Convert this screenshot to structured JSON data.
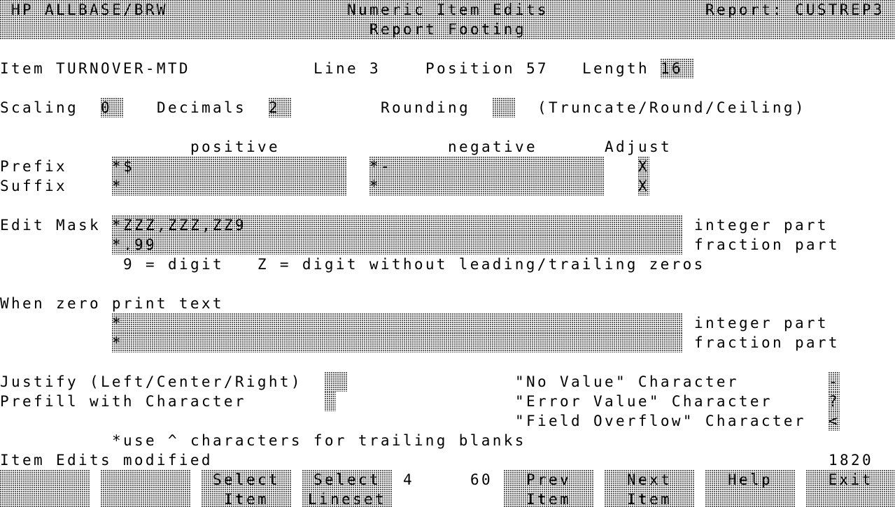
{
  "header": {
    "app": "HP ALLBASE/BRW",
    "title": "Numeric Item Edits",
    "report": "Report: CUSTREP3",
    "subtitle": "Report Footing"
  },
  "item": {
    "label": "Item TURNOVER-MTD",
    "line": "Line 3",
    "position": "Position 57",
    "length_label": "Length",
    "length_value": "16"
  },
  "scaling": {
    "label": "Scaling",
    "value": "0",
    "decimals_label": "Decimals",
    "decimals_value": "2",
    "rounding_label": "Rounding",
    "rounding_value": "",
    "rounding_hint": "(Truncate/Round/Ceiling)"
  },
  "affixes": {
    "positive_header": "positive",
    "negative_header": "negative",
    "adjust_header": "Adjust",
    "prefix_label": "Prefix",
    "prefix_positive": "*$",
    "prefix_negative": "*-",
    "prefix_adjust": "X",
    "suffix_label": "Suffix",
    "suffix_positive": "*",
    "suffix_negative": "*",
    "suffix_adjust": "X"
  },
  "edit_mask": {
    "label": "Edit Mask",
    "integer": "*ZZZ,ZZZ,ZZ9",
    "fraction": "*.99",
    "integer_label": "integer part",
    "fraction_label": "fraction part",
    "hint": "9 = digit   Z = digit without leading/trailing zeros"
  },
  "zero_text": {
    "label": "When zero print text",
    "integer": "*",
    "fraction": "*",
    "integer_label": "integer part",
    "fraction_label": "fraction part"
  },
  "justify": {
    "label": "Justify (Left/Center/Right)",
    "value": "",
    "prefill_label": "Prefill with Character",
    "prefill_value": ""
  },
  "special_chars": {
    "no_value_label": "\"No Value\" Character",
    "no_value": "-",
    "error_label": "\"Error Value\" Character",
    "error": "?",
    "overflow_label": "\"Field Overflow\" Character",
    "overflow": "<"
  },
  "note": "*use ^ characters for trailing blanks",
  "status": {
    "message": "Item Edits modified",
    "code": "1820"
  },
  "function_keys": [
    {
      "line1": "",
      "line2": ""
    },
    {
      "line1": "",
      "line2": ""
    },
    {
      "line1": "Select",
      "line2": "Item"
    },
    {
      "line1": "Select",
      "line2": "Lineset"
    },
    {
      "line1": "Prev",
      "line2": "Item"
    },
    {
      "line1": "Next",
      "line2": "Item"
    },
    {
      "line1": "Help",
      "line2": ""
    },
    {
      "line1": "Exit",
      "line2": ""
    }
  ],
  "key_row": {
    "value_a": "4",
    "value_b": "60"
  }
}
